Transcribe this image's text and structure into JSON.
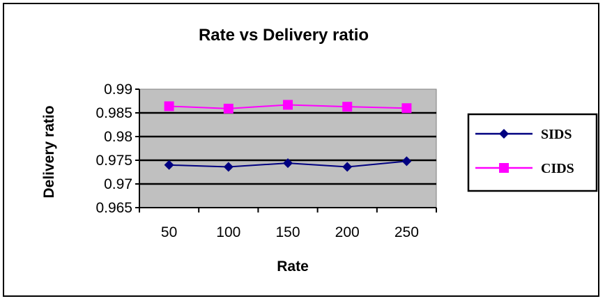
{
  "chart_data": {
    "type": "line",
    "title": "Rate vs Delivery ratio",
    "xlabel": "Rate",
    "ylabel": "Delivery ratio",
    "categories": [
      "50",
      "100",
      "150",
      "200",
      "250"
    ],
    "ylim": [
      0.965,
      0.99
    ],
    "yticks": [
      "0.99",
      "0.985",
      "0.98",
      "0.975",
      "0.97",
      "0.965"
    ],
    "grid": true,
    "legend_position": "right",
    "plot_background": "#c0c0c0",
    "series": [
      {
        "name": "SIDS",
        "color": "#000080",
        "marker": "diamond",
        "values": [
          0.974,
          0.9736,
          0.9744,
          0.9736,
          0.9748
        ]
      },
      {
        "name": "CIDS",
        "color": "#ff00ff",
        "marker": "square",
        "values": [
          0.9864,
          0.9859,
          0.9867,
          0.9863,
          0.986
        ]
      }
    ]
  }
}
